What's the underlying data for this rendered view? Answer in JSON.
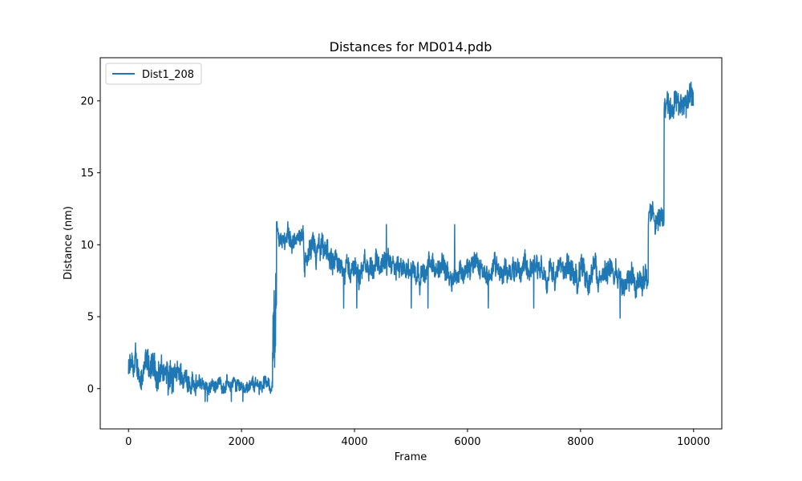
{
  "chart_data": {
    "type": "line",
    "title": "Distances for MD014.pdb",
    "xlabel": "Frame",
    "ylabel": "Distance (nm)",
    "xlim": [
      -500,
      10500
    ],
    "ylim": [
      -2.8,
      23.0
    ],
    "xticks": [
      0,
      2000,
      4000,
      6000,
      8000,
      10000
    ],
    "yticks": [
      0,
      5,
      10,
      15,
      20
    ],
    "grid": false,
    "legend_position": "top-left",
    "series": [
      {
        "name": "Dist1_208",
        "color": "#1f77b4",
        "segments": [
          {
            "x0": 0,
            "x1": 700,
            "mean": 1.2,
            "amp": 1.0,
            "min": -0.6,
            "max": 3.2
          },
          {
            "x0": 700,
            "x1": 800,
            "mean": 0.3,
            "amp": 1.2,
            "min": -1.8,
            "max": 2.6
          },
          {
            "x0": 800,
            "x1": 1200,
            "mean": 0.8,
            "amp": 0.8,
            "min": -0.6,
            "max": 3.2
          },
          {
            "x0": 1200,
            "x1": 2550,
            "mean": 0.3,
            "amp": 0.45,
            "min": -0.9,
            "max": 1.3
          },
          {
            "x0": 2550,
            "x1": 2620,
            "mean": 3.5,
            "amp": 2.5,
            "min": 0,
            "max": 8
          },
          {
            "x0": 2620,
            "x1": 3100,
            "mean": 10.3,
            "amp": 0.6,
            "min": 8.5,
            "max": 11.6
          },
          {
            "x0": 3100,
            "x1": 3600,
            "mean": 9.2,
            "amp": 0.9,
            "min": 6.4,
            "max": 11.7
          },
          {
            "x0": 3600,
            "x1": 7500,
            "mean": 8.3,
            "amp": 0.75,
            "min": 5.6,
            "max": 11.4
          },
          {
            "x0": 7500,
            "x1": 9200,
            "mean": 8.0,
            "amp": 0.85,
            "min": 4.9,
            "max": 10.1
          },
          {
            "x0": 9200,
            "x1": 9480,
            "mean": 12.0,
            "amp": 0.7,
            "min": 10.2,
            "max": 14.3
          },
          {
            "x0": 9480,
            "x1": 10000,
            "mean": 20.0,
            "amp": 0.9,
            "min": 16.3,
            "max": 22.3
          }
        ]
      }
    ]
  }
}
